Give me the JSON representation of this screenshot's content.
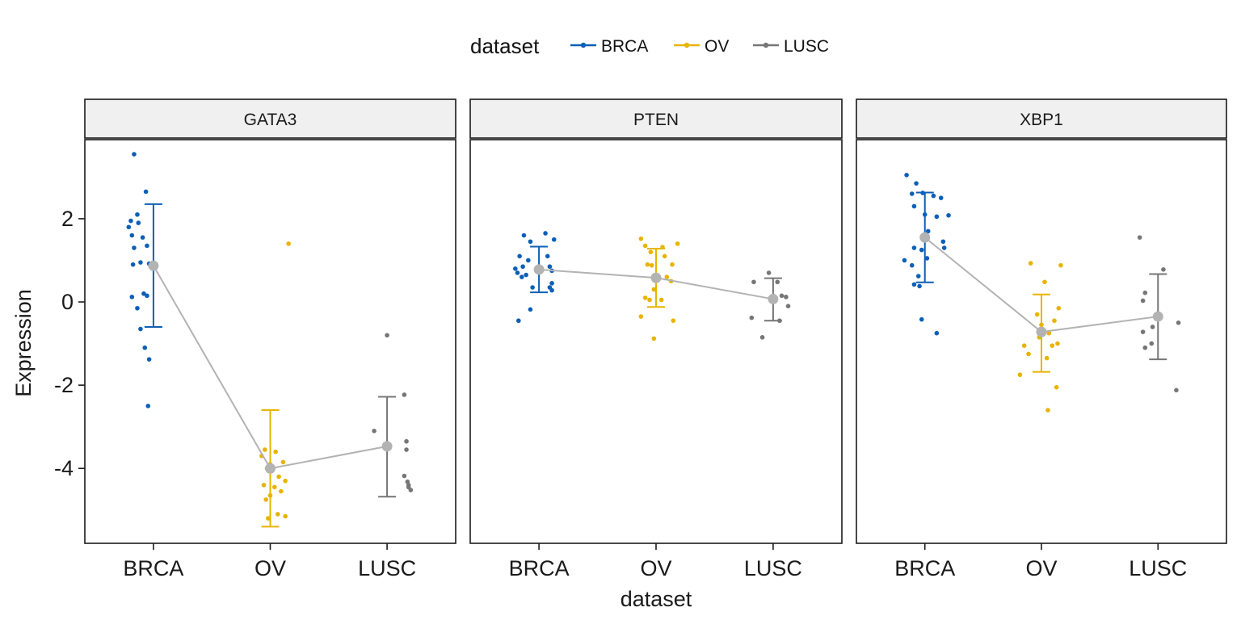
{
  "chart_data": {
    "type": "scatter",
    "legend": {
      "title": "dataset",
      "placement": "top-center",
      "entries": [
        {
          "label": "BRCA",
          "color": "#0C5FB7"
        },
        {
          "label": "OV",
          "color": "#E8B400"
        },
        {
          "label": "LUSC",
          "color": "#767676"
        }
      ]
    },
    "xlabel": "dataset",
    "ylabel": "Expression",
    "categories": [
      "BRCA",
      "OV",
      "LUSC"
    ],
    "ylim": [
      -5.8,
      3.9
    ],
    "yticks": [
      -4,
      -2,
      0,
      2
    ],
    "ytick_labels": [
      "-4",
      "-2",
      "0",
      "2"
    ],
    "summary_color": "#B3B3B3",
    "panels": [
      {
        "title": "GATA3",
        "groups": [
          {
            "category": "BRCA",
            "mean": 0.87,
            "lower": -0.6,
            "upper": 2.35,
            "points": [
              [
                -0.18,
                3.55
              ],
              [
                -0.07,
                2.65
              ],
              [
                -0.21,
                1.95
              ],
              [
                -0.14,
                1.9
              ],
              [
                -0.23,
                1.8
              ],
              [
                -0.15,
                2.1
              ],
              [
                -0.2,
                1.6
              ],
              [
                -0.1,
                1.55
              ],
              [
                -0.06,
                1.35
              ],
              [
                -0.18,
                1.3
              ],
              [
                -0.12,
                0.95
              ],
              [
                -0.19,
                0.9
              ],
              [
                -0.04,
                0.92
              ],
              [
                -0.09,
                0.2
              ],
              [
                -0.06,
                0.15
              ],
              [
                -0.2,
                0.12
              ],
              [
                -0.15,
                -0.15
              ],
              [
                -0.12,
                -0.65
              ],
              [
                -0.08,
                -1.1
              ],
              [
                -0.04,
                -1.38
              ],
              [
                -0.05,
                -2.5
              ]
            ]
          },
          {
            "category": "OV",
            "mean": -4.0,
            "lower": -5.4,
            "upper": -2.6,
            "points": [
              [
                0.17,
                1.4
              ],
              [
                -0.05,
                -3.55
              ],
              [
                0.05,
                -3.6
              ],
              [
                -0.08,
                -3.7
              ],
              [
                0.0,
                -3.9
              ],
              [
                0.12,
                -3.85
              ],
              [
                -0.03,
                -4.0
              ],
              [
                0.08,
                -4.2
              ],
              [
                0.14,
                -4.3
              ],
              [
                -0.06,
                -4.4
              ],
              [
                0.04,
                -4.45
              ],
              [
                0.1,
                -4.55
              ],
              [
                0.0,
                -4.65
              ],
              [
                -0.04,
                -4.75
              ],
              [
                0.07,
                -5.1
              ],
              [
                0.14,
                -5.15
              ],
              [
                -0.02,
                -5.2
              ]
            ]
          },
          {
            "category": "LUSC",
            "mean": -3.47,
            "lower": -4.68,
            "upper": -2.28,
            "points": [
              [
                0.0,
                -0.8
              ],
              [
                -0.12,
                -3.1
              ],
              [
                0.16,
                -2.23
              ],
              [
                0.18,
                -3.35
              ],
              [
                0.18,
                -3.55
              ],
              [
                0.16,
                -4.18
              ],
              [
                0.19,
                -4.32
              ],
              [
                0.2,
                -4.4
              ],
              [
                0.2,
                -4.45
              ],
              [
                0.22,
                -4.52
              ]
            ]
          }
        ]
      },
      {
        "title": "PTEN",
        "groups": [
          {
            "category": "BRCA",
            "mean": 0.78,
            "lower": 0.23,
            "upper": 1.33,
            "points": [
              [
                -0.14,
                1.6
              ],
              [
                0.06,
                1.65
              ],
              [
                -0.08,
                1.45
              ],
              [
                0.14,
                1.5
              ],
              [
                -0.18,
                1.1
              ],
              [
                -0.1,
                1.0
              ],
              [
                0.08,
                1.1
              ],
              [
                -0.22,
                0.8
              ],
              [
                -0.15,
                0.85
              ],
              [
                0.1,
                0.85
              ],
              [
                0.12,
                0.75
              ],
              [
                -0.2,
                0.7
              ],
              [
                -0.12,
                0.65
              ],
              [
                -0.16,
                0.6
              ],
              [
                0.12,
                0.45
              ],
              [
                0.1,
                0.35
              ],
              [
                -0.06,
                0.35
              ],
              [
                0.12,
                0.28
              ],
              [
                -0.08,
                -0.18
              ],
              [
                -0.19,
                -0.45
              ]
            ]
          },
          {
            "category": "OV",
            "mean": 0.58,
            "lower": -0.12,
            "upper": 1.28,
            "points": [
              [
                -0.14,
                1.52
              ],
              [
                -0.1,
                1.35
              ],
              [
                0.2,
                1.4
              ],
              [
                0.06,
                1.32
              ],
              [
                -0.05,
                1.2
              ],
              [
                0.08,
                1.1
              ],
              [
                -0.08,
                0.9
              ],
              [
                -0.04,
                0.88
              ],
              [
                0.15,
                0.9
              ],
              [
                0.1,
                0.6
              ],
              [
                0.14,
                0.5
              ],
              [
                -0.02,
                0.3
              ],
              [
                -0.1,
                0.1
              ],
              [
                -0.06,
                0.05
              ],
              [
                0.05,
                0.05
              ],
              [
                -0.14,
                -0.35
              ],
              [
                0.16,
                -0.45
              ],
              [
                -0.02,
                -0.88
              ]
            ]
          },
          {
            "category": "LUSC",
            "mean": 0.07,
            "lower": -0.45,
            "upper": 0.57,
            "points": [
              [
                -0.04,
                0.7
              ],
              [
                0.04,
                0.48
              ],
              [
                -0.18,
                0.48
              ],
              [
                0.12,
                0.12
              ],
              [
                0.08,
                0.15
              ],
              [
                0.14,
                -0.1
              ],
              [
                -0.2,
                -0.38
              ],
              [
                0.06,
                -0.45
              ],
              [
                -0.1,
                -0.85
              ]
            ]
          }
        ]
      },
      {
        "title": "XBP1",
        "groups": [
          {
            "category": "BRCA",
            "mean": 1.55,
            "lower": 0.47,
            "upper": 2.63,
            "points": [
              [
                -0.17,
                3.05
              ],
              [
                -0.08,
                2.85
              ],
              [
                -0.12,
                2.6
              ],
              [
                -0.02,
                2.62
              ],
              [
                0.08,
                2.55
              ],
              [
                0.15,
                2.5
              ],
              [
                -0.1,
                2.3
              ],
              [
                0.0,
                2.1
              ],
              [
                0.22,
                2.08
              ],
              [
                0.11,
                2.05
              ],
              [
                0.03,
                1.7
              ],
              [
                0.17,
                1.45
              ],
              [
                -0.1,
                1.3
              ],
              [
                -0.03,
                1.25
              ],
              [
                0.18,
                1.3
              ],
              [
                -0.19,
                1.0
              ],
              [
                0.02,
                1.05
              ],
              [
                -0.12,
                0.88
              ],
              [
                -0.06,
                0.62
              ],
              [
                -0.1,
                0.42
              ],
              [
                -0.05,
                0.38
              ],
              [
                -0.03,
                -0.42
              ],
              [
                0.11,
                -0.75
              ]
            ]
          },
          {
            "category": "OV",
            "mean": -0.72,
            "lower": -1.68,
            "upper": 0.18,
            "points": [
              [
                -0.1,
                0.93
              ],
              [
                0.18,
                0.88
              ],
              [
                0.03,
                0.48
              ],
              [
                0.16,
                -0.15
              ],
              [
                -0.04,
                -0.3
              ],
              [
                0.12,
                -0.45
              ],
              [
                0.0,
                -0.55
              ],
              [
                0.02,
                -0.7
              ],
              [
                0.07,
                -0.75
              ],
              [
                -0.02,
                -0.85
              ],
              [
                0.15,
                -1.0
              ],
              [
                0.1,
                -1.05
              ],
              [
                -0.16,
                -1.05
              ],
              [
                -0.12,
                -1.25
              ],
              [
                0.05,
                -1.35
              ],
              [
                -0.2,
                -1.75
              ],
              [
                0.14,
                -2.05
              ],
              [
                0.06,
                -2.6
              ]
            ]
          },
          {
            "category": "LUSC",
            "mean": -0.35,
            "lower": -1.38,
            "upper": 0.67,
            "points": [
              [
                -0.17,
                1.55
              ],
              [
                0.05,
                0.78
              ],
              [
                -0.12,
                0.22
              ],
              [
                -0.14,
                0.03
              ],
              [
                0.19,
                -0.5
              ],
              [
                -0.05,
                -0.6
              ],
              [
                -0.14,
                -0.72
              ],
              [
                -0.06,
                -1.0
              ],
              [
                -0.12,
                -1.1
              ],
              [
                0.17,
                -2.12
              ]
            ]
          }
        ]
      }
    ]
  }
}
